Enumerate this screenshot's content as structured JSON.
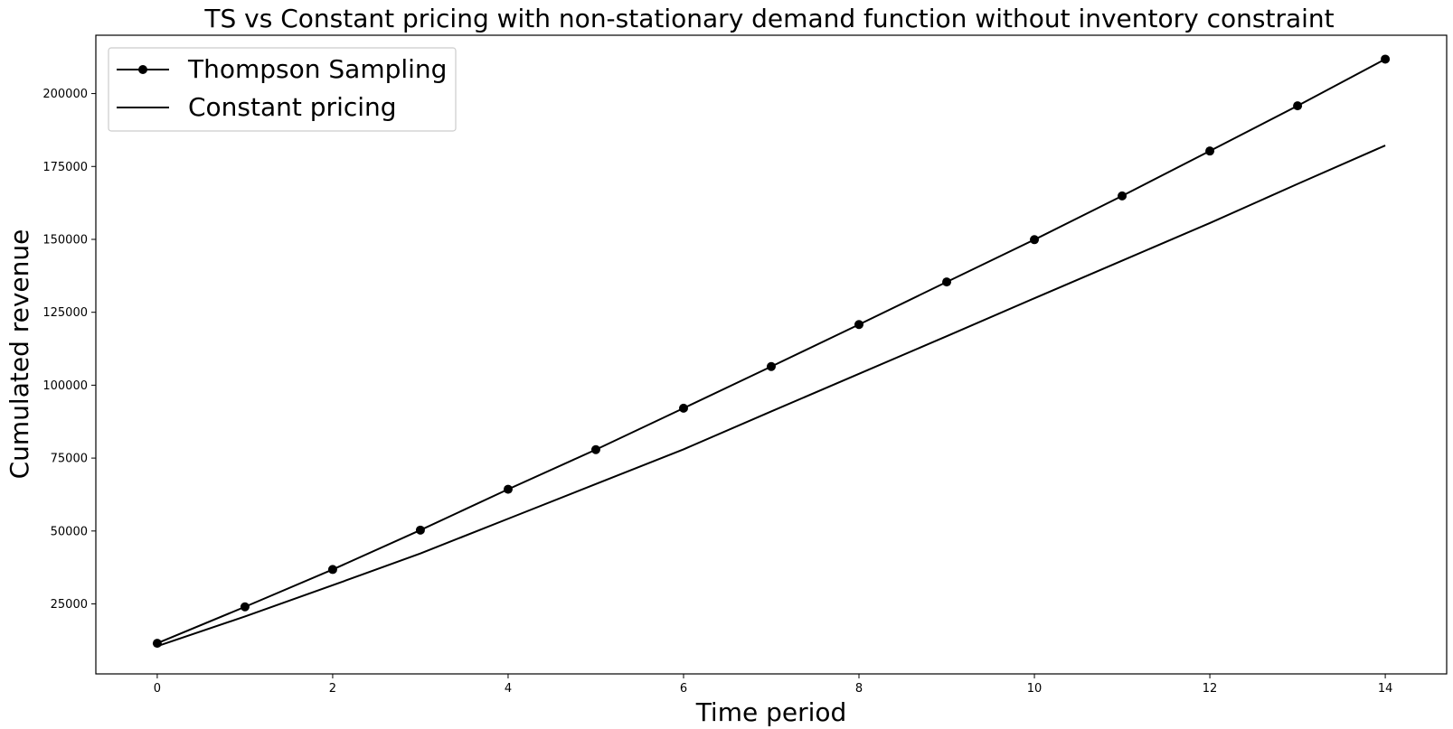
{
  "chart_data": {
    "type": "line",
    "title": "TS vs Constant pricing with non-stationary demand function without inventory constraint",
    "xlabel": "Time period",
    "ylabel": "Cumulated revenue",
    "x": [
      0,
      1,
      2,
      3,
      4,
      5,
      6,
      7,
      8,
      9,
      10,
      11,
      12,
      13,
      14
    ],
    "xlim": [
      -0.7,
      14.7
    ],
    "ylim": [
      1000,
      220000
    ],
    "xticks": [
      0,
      2,
      4,
      6,
      8,
      10,
      12,
      14
    ],
    "yticks": [
      25000,
      50000,
      75000,
      100000,
      125000,
      150000,
      175000,
      200000
    ],
    "grid": false,
    "legend_position": "top-left",
    "series": [
      {
        "name": "Thompson Sampling",
        "marker": "circle",
        "color": "#000000",
        "values": [
          11500,
          24000,
          36800,
          50300,
          64300,
          77900,
          92100,
          106400,
          120800,
          135400,
          149900,
          164900,
          180300,
          195800,
          211800
        ]
      },
      {
        "name": "Constant pricing",
        "marker": "none",
        "color": "#000000",
        "values": [
          10500,
          20700,
          31400,
          42300,
          54200,
          66100,
          78000,
          91000,
          103900,
          116800,
          129800,
          142700,
          155600,
          169000,
          182200
        ]
      }
    ]
  }
}
